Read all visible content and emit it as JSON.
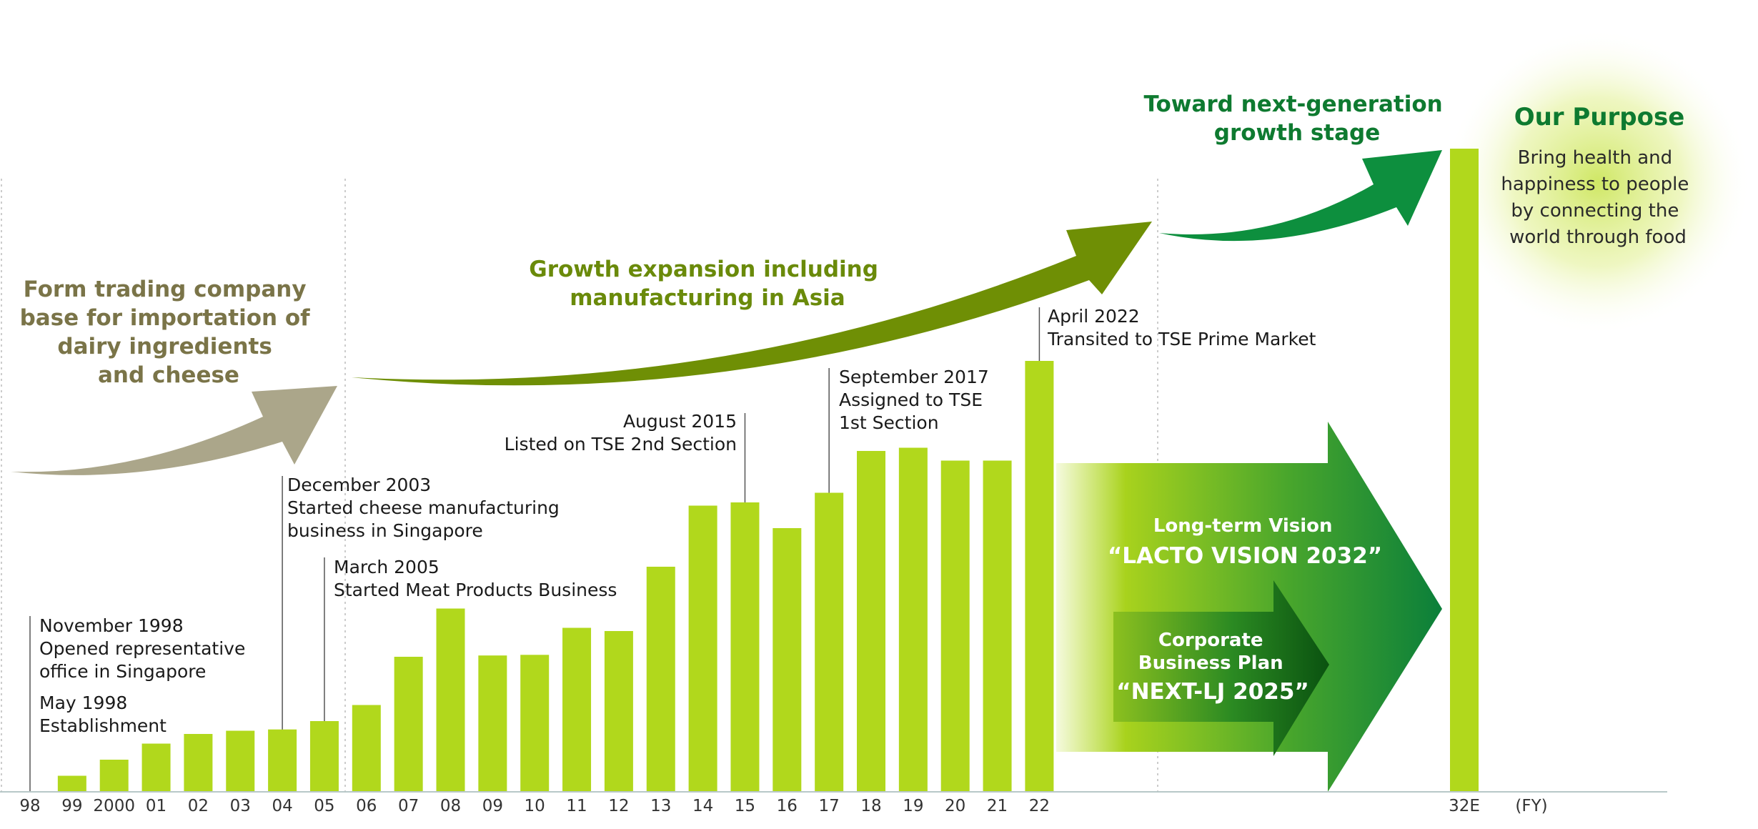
{
  "chart_data": {
    "type": "bar",
    "categories": [
      "98",
      "99",
      "2000",
      "01",
      "02",
      "03",
      "04",
      "05",
      "06",
      "07",
      "08",
      "09",
      "10",
      "11",
      "12",
      "13",
      "14",
      "15",
      "16",
      "17",
      "18",
      "19",
      "20",
      "21",
      "22",
      "32E"
    ],
    "values": [
      0,
      2.5,
      5,
      7.5,
      9,
      9.5,
      9.7,
      11,
      13.5,
      21,
      28.5,
      21.2,
      21.3,
      25.5,
      25,
      35,
      44.5,
      45,
      41,
      46.5,
      53,
      53.5,
      51.5,
      51.5,
      67,
      100
    ],
    "unit_label": "(FY)",
    "ylim": [
      0,
      100
    ],
    "grid": false,
    "colors": {
      "bar": "#b1d81c",
      "arrow_phase1": "#aba68a",
      "arrow_phase2": "#6f8f05",
      "arrow_phase3": "#0d8f3e",
      "text_phase1": "#7a7448",
      "text_phase2": "#6a8a0a",
      "text_phase3": "#0e7a30",
      "purpose_glow": "#d8ec85",
      "axis": "#b8c8c8"
    },
    "phases": [
      {
        "lines": [
          "Form trading company",
          "base for importation of",
          "dairy ingredients",
          "and cheese"
        ]
      },
      {
        "lines": [
          "Growth expansion including",
          "manufacturing in Asia"
        ]
      },
      {
        "lines": [
          "Toward next-generation",
          "growth stage"
        ]
      }
    ],
    "annotations": [
      {
        "category": "98",
        "lines": [
          "November 1998",
          "Opened representative",
          "office in Singapore"
        ]
      },
      {
        "category": "98",
        "lines": [
          "May 1998",
          "Establishment"
        ]
      },
      {
        "category": "04",
        "lines": [
          "December 2003",
          "Started cheese manufacturing",
          "business in Singapore"
        ]
      },
      {
        "category": "05",
        "lines": [
          "March 2005",
          "Started Meat Products Business"
        ]
      },
      {
        "category": "15",
        "lines": [
          "August 2015",
          "Listed on TSE 2nd Section"
        ]
      },
      {
        "category": "17",
        "lines": [
          "September 2017",
          "Assigned to TSE",
          "1st Section"
        ]
      },
      {
        "category": "22",
        "lines": [
          "April 2022",
          "Transited to TSE Prime Market"
        ]
      }
    ],
    "vision": {
      "long_term": [
        "Long-term Vision",
        "“LACTO VISION 2032”"
      ],
      "plan": [
        "Corporate",
        "Business Plan",
        "“NEXT-LJ 2025”"
      ]
    },
    "purpose": {
      "title": "Our Purpose",
      "lines": [
        "Bring health and",
        "happiness to people",
        "by connecting the",
        "world through food"
      ]
    }
  }
}
